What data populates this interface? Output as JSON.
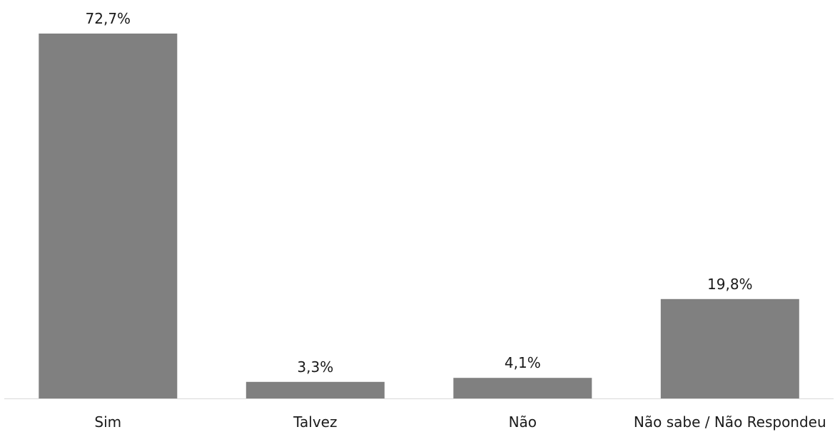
{
  "chart_data": {
    "type": "bar",
    "categories": [
      "Sim",
      "Talvez",
      "Não",
      "Não sabe / Não Respondeu"
    ],
    "values": [
      72.7,
      3.3,
      4.1,
      19.8
    ],
    "data_labels": [
      "72,7%",
      "3,3%",
      "4,1%",
      "19,8%"
    ],
    "title": "",
    "xlabel": "",
    "ylabel": "",
    "ylim": [
      0,
      72.7
    ],
    "grid": false,
    "legend": "none",
    "bar_color": "#808080"
  }
}
